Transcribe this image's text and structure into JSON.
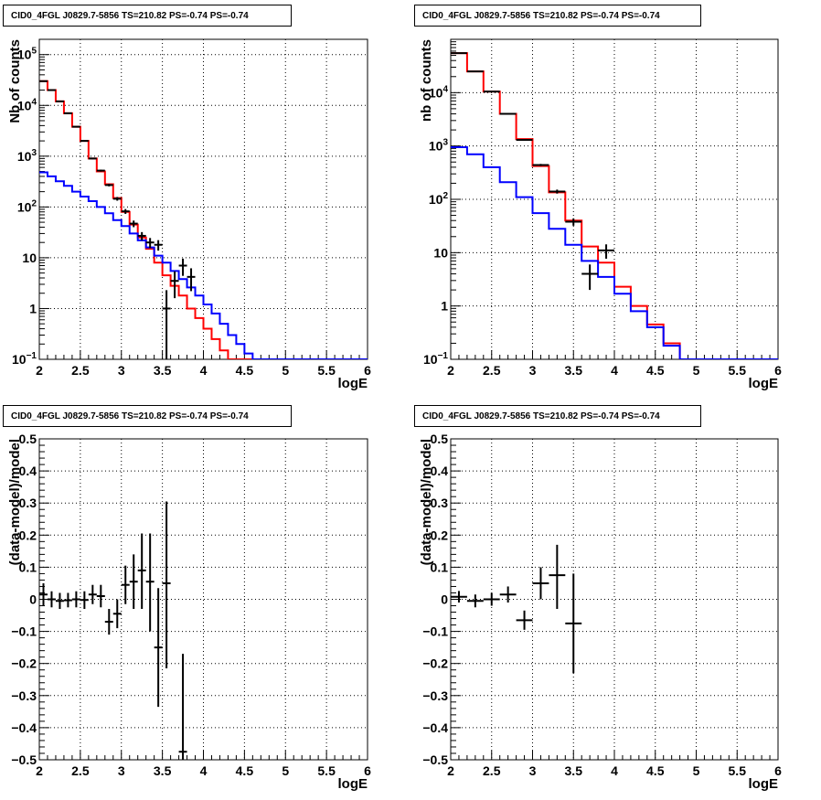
{
  "chart_data": [
    {
      "type": "line",
      "title": "CID0_4FGL J0829.7-5856 TS=210.82 PS=-0.74 PS=-0.74",
      "xlabel": "logE",
      "ylabel": "Nb of counts",
      "log_y": true,
      "grid": true,
      "xlim": [
        2,
        6
      ],
      "ylim": [
        0.1,
        200000
      ],
      "x_ticks": [
        "2",
        "2.5",
        "3",
        "3.5",
        "4",
        "4.5",
        "5",
        "5.5",
        "6"
      ],
      "y_ticks": [
        {
          "v": 0.1,
          "t": "10",
          "e": "−1"
        },
        {
          "v": 1,
          "t": "1"
        },
        {
          "v": 10,
          "t": "10"
        },
        {
          "v": 100,
          "t": "10",
          "e": "2"
        },
        {
          "v": 1000,
          "t": "10",
          "e": "3"
        },
        {
          "v": 10000,
          "t": "10",
          "e": "4"
        },
        {
          "v": 100000,
          "t": "10",
          "e": "5"
        }
      ],
      "series": [
        {
          "color": "#ff0000",
          "step": true,
          "x0": 2.0,
          "bin_width": 0.1,
          "values": [
            30000,
            20000,
            12000,
            7000,
            3800,
            2000,
            900,
            500,
            280,
            150,
            80,
            45,
            25,
            15,
            8,
            4.5,
            2.8,
            1.8,
            1.0,
            0.65,
            0.4,
            0.25,
            0.15,
            0.1,
            0.1,
            0.1,
            0.1,
            0.1,
            0.1,
            0.1,
            0.1,
            0.1,
            0.1,
            0.1,
            0.1,
            0.1,
            0.1,
            0.1,
            0.1,
            0.1
          ]
        },
        {
          "color": "#0000ff",
          "step": true,
          "x0": 2.0,
          "bin_width": 0.1,
          "values": [
            480,
            400,
            320,
            260,
            200,
            160,
            130,
            100,
            75,
            55,
            42,
            30,
            22,
            16,
            11,
            8,
            5.5,
            3.8,
            2.6,
            1.8,
            1.2,
            0.8,
            0.5,
            0.3,
            0.2,
            0.13,
            0.1,
            0.1,
            0.1,
            0.1,
            0.1,
            0.1,
            0.1,
            0.1,
            0.1,
            0.1,
            0.1,
            0.1,
            0.1,
            0.1
          ]
        }
      ],
      "points": [
        {
          "x": 2.05,
          "y": 30000,
          "xe": 0.05,
          "ylo": 29800,
          "yhi": 30200
        },
        {
          "x": 2.15,
          "y": 20000,
          "xe": 0.05,
          "ylo": 19800,
          "yhi": 20200
        },
        {
          "x": 2.25,
          "y": 12000,
          "xe": 0.05,
          "ylo": 11890,
          "yhi": 12110
        },
        {
          "x": 2.35,
          "y": 7000,
          "xe": 0.05,
          "ylo": 6920,
          "yhi": 7080
        },
        {
          "x": 2.45,
          "y": 3800,
          "xe": 0.05,
          "ylo": 3740,
          "yhi": 3860
        },
        {
          "x": 2.55,
          "y": 2000,
          "xe": 0.05,
          "ylo": 1955,
          "yhi": 2045
        },
        {
          "x": 2.65,
          "y": 900,
          "xe": 0.05,
          "ylo": 870,
          "yhi": 930
        },
        {
          "x": 2.75,
          "y": 520,
          "xe": 0.05,
          "ylo": 497,
          "yhi": 543
        },
        {
          "x": 2.85,
          "y": 270,
          "xe": 0.05,
          "ylo": 254,
          "yhi": 286
        },
        {
          "x": 2.95,
          "y": 145,
          "xe": 0.05,
          "ylo": 133,
          "yhi": 157
        },
        {
          "x": 3.05,
          "y": 82,
          "xe": 0.05,
          "ylo": 73,
          "yhi": 91
        },
        {
          "x": 3.15,
          "y": 47,
          "xe": 0.05,
          "ylo": 40,
          "yhi": 54
        },
        {
          "x": 3.25,
          "y": 27,
          "xe": 0.05,
          "ylo": 22,
          "yhi": 32
        },
        {
          "x": 3.35,
          "y": 20,
          "xe": 0.05,
          "ylo": 15.5,
          "yhi": 24.5
        },
        {
          "x": 3.45,
          "y": 18,
          "xe": 0.05,
          "ylo": 13.8,
          "yhi": 22.2
        },
        {
          "x": 3.55,
          "y": 1,
          "xe": 0.05,
          "ylo": 0.1,
          "yhi": 2.3
        },
        {
          "x": 3.65,
          "y": 3.5,
          "xe": 0.05,
          "ylo": 1.6,
          "yhi": 5.4
        },
        {
          "x": 3.75,
          "y": 7,
          "xe": 0.05,
          "ylo": 4.4,
          "yhi": 9.6
        },
        {
          "x": 3.85,
          "y": 4.2,
          "xe": 0.05,
          "ylo": 2.2,
          "yhi": 6.2
        }
      ]
    },
    {
      "type": "line",
      "title": "CID0_4FGL J0829.7-5856 TS=210.82 PS=-0.74 PS=-0.74",
      "xlabel": "logE",
      "ylabel": "nb of counts",
      "log_y": true,
      "grid": true,
      "xlim": [
        2,
        6
      ],
      "ylim": [
        0.1,
        100000
      ],
      "x_ticks": [
        "2",
        "2.5",
        "3",
        "3.5",
        "4",
        "4.5",
        "5",
        "5.5",
        "6"
      ],
      "y_ticks": [
        {
          "v": 0.1,
          "t": "10",
          "e": "−1"
        },
        {
          "v": 1,
          "t": "1"
        },
        {
          "v": 10,
          "t": "10"
        },
        {
          "v": 100,
          "t": "10",
          "e": "2"
        },
        {
          "v": 1000,
          "t": "10",
          "e": "3"
        },
        {
          "v": 10000,
          "t": "10",
          "e": "4"
        }
      ],
      "series": [
        {
          "color": "#ff0000",
          "step": true,
          "x0": 2.0,
          "bin_width": 0.2,
          "values": [
            55000,
            25000,
            10500,
            4000,
            1350,
            420,
            135,
            40,
            13,
            6.5,
            2.3,
            1.0,
            0.45,
            0.2,
            0.1,
            0.1,
            0.1,
            0.1,
            0.1,
            0.1
          ]
        },
        {
          "color": "#0000ff",
          "step": true,
          "x0": 2.0,
          "bin_width": 0.2,
          "values": [
            950,
            700,
            400,
            210,
            110,
            55,
            28,
            14,
            7,
            3.5,
            1.7,
            0.8,
            0.4,
            0.18,
            0.1,
            0.1,
            0.1,
            0.1,
            0.1,
            0.1
          ]
        }
      ],
      "points": [
        {
          "x": 2.1,
          "y": 55000,
          "xe": 0.1,
          "ylo": 54800,
          "yhi": 55200
        },
        {
          "x": 2.3,
          "y": 25000,
          "xe": 0.1,
          "ylo": 24840,
          "yhi": 25160
        },
        {
          "x": 2.5,
          "y": 10500,
          "xe": 0.1,
          "ylo": 10400,
          "yhi": 10600
        },
        {
          "x": 2.7,
          "y": 4000,
          "xe": 0.1,
          "ylo": 3937,
          "yhi": 4063
        },
        {
          "x": 2.9,
          "y": 1300,
          "xe": 0.1,
          "ylo": 1264,
          "yhi": 1336
        },
        {
          "x": 3.1,
          "y": 440,
          "xe": 0.1,
          "ylo": 419,
          "yhi": 461
        },
        {
          "x": 3.3,
          "y": 140,
          "xe": 0.1,
          "ylo": 128,
          "yhi": 152
        },
        {
          "x": 3.5,
          "y": 38,
          "xe": 0.1,
          "ylo": 32,
          "yhi": 44
        },
        {
          "x": 3.7,
          "y": 4,
          "xe": 0.1,
          "ylo": 2,
          "yhi": 6
        },
        {
          "x": 3.9,
          "y": 11,
          "xe": 0.1,
          "ylo": 7.7,
          "yhi": 14.3
        }
      ]
    },
    {
      "type": "scatter",
      "title": "CID0_4FGL J0829.7-5856 TS=210.82 PS=-0.74 PS=-0.74",
      "xlabel": "logE",
      "ylabel": "(data-model)/model",
      "grid": true,
      "xlim": [
        2,
        6
      ],
      "ylim": [
        -0.5,
        0.5
      ],
      "x_ticks": [
        "2",
        "2.5",
        "3",
        "3.5",
        "4",
        "4.5",
        "5",
        "5.5",
        "6"
      ],
      "y_ticks": [
        "−0.5",
        "−0.4",
        "−0.3",
        "−0.2",
        "−0.1",
        "0",
        "0.1",
        "0.2",
        "0.3",
        "0.4",
        "0.5"
      ],
      "points": [
        {
          "x": 2.05,
          "y": 0.015,
          "xe": 0.05,
          "ylo": -0.02,
          "yhi": 0.05
        },
        {
          "x": 2.15,
          "y": 0.0,
          "xe": 0.05,
          "ylo": -0.025,
          "yhi": 0.025
        },
        {
          "x": 2.25,
          "y": -0.005,
          "xe": 0.05,
          "ylo": -0.03,
          "yhi": 0.02
        },
        {
          "x": 2.35,
          "y": -0.003,
          "xe": 0.05,
          "ylo": -0.025,
          "yhi": 0.02
        },
        {
          "x": 2.45,
          "y": 0.0,
          "xe": 0.05,
          "ylo": -0.025,
          "yhi": 0.025
        },
        {
          "x": 2.55,
          "y": -0.002,
          "xe": 0.05,
          "ylo": -0.03,
          "yhi": 0.025
        },
        {
          "x": 2.65,
          "y": 0.015,
          "xe": 0.05,
          "ylo": -0.015,
          "yhi": 0.045
        },
        {
          "x": 2.75,
          "y": 0.01,
          "xe": 0.05,
          "ylo": -0.025,
          "yhi": 0.045
        },
        {
          "x": 2.85,
          "y": -0.07,
          "xe": 0.05,
          "ylo": -0.11,
          "yhi": -0.03
        },
        {
          "x": 2.95,
          "y": -0.045,
          "xe": 0.05,
          "ylo": -0.09,
          "yhi": 0.0
        },
        {
          "x": 3.05,
          "y": 0.045,
          "xe": 0.05,
          "ylo": -0.015,
          "yhi": 0.105
        },
        {
          "x": 3.15,
          "y": 0.055,
          "xe": 0.05,
          "ylo": -0.03,
          "yhi": 0.14
        },
        {
          "x": 3.25,
          "y": 0.09,
          "xe": 0.05,
          "ylo": -0.03,
          "yhi": 0.205
        },
        {
          "x": 3.35,
          "y": 0.055,
          "xe": 0.05,
          "ylo": -0.1,
          "yhi": 0.205
        },
        {
          "x": 3.45,
          "y": -0.15,
          "xe": 0.05,
          "ylo": -0.335,
          "yhi": 0.035
        },
        {
          "x": 3.55,
          "y": 0.05,
          "xe": 0.05,
          "ylo": -0.215,
          "yhi": 0.305
        },
        {
          "x": 3.75,
          "y": -0.475,
          "xe": 0.05,
          "ylo": -0.5,
          "yhi": -0.17
        }
      ]
    },
    {
      "type": "scatter",
      "title": "CID0_4FGL J0829.7-5856 TS=210.82 PS=-0.74 PS=-0.74",
      "xlabel": "logE",
      "ylabel": "(data-model)/model",
      "grid": true,
      "xlim": [
        2,
        6
      ],
      "ylim": [
        -0.5,
        0.5
      ],
      "x_ticks": [
        "2",
        "2.5",
        "3",
        "3.5",
        "4",
        "4.5",
        "5",
        "5.5",
        "6"
      ],
      "y_ticks": [
        "−0.5",
        "−0.4",
        "−0.3",
        "−0.2",
        "−0.1",
        "0",
        "0.1",
        "0.2",
        "0.3",
        "0.4",
        "0.5"
      ],
      "points": [
        {
          "x": 2.1,
          "y": 0.008,
          "xe": 0.1,
          "ylo": -0.01,
          "yhi": 0.026
        },
        {
          "x": 2.3,
          "y": -0.005,
          "xe": 0.1,
          "ylo": -0.025,
          "yhi": 0.015
        },
        {
          "x": 2.5,
          "y": 0.0,
          "xe": 0.1,
          "ylo": -0.02,
          "yhi": 0.02
        },
        {
          "x": 2.7,
          "y": 0.015,
          "xe": 0.1,
          "ylo": -0.01,
          "yhi": 0.04
        },
        {
          "x": 2.9,
          "y": -0.065,
          "xe": 0.1,
          "ylo": -0.095,
          "yhi": -0.035
        },
        {
          "x": 3.1,
          "y": 0.05,
          "xe": 0.1,
          "ylo": 0.0,
          "yhi": 0.1
        },
        {
          "x": 3.3,
          "y": 0.075,
          "xe": 0.1,
          "ylo": -0.03,
          "yhi": 0.17
        },
        {
          "x": 3.5,
          "y": -0.075,
          "xe": 0.1,
          "ylo": -0.23,
          "yhi": 0.08
        }
      ]
    }
  ]
}
